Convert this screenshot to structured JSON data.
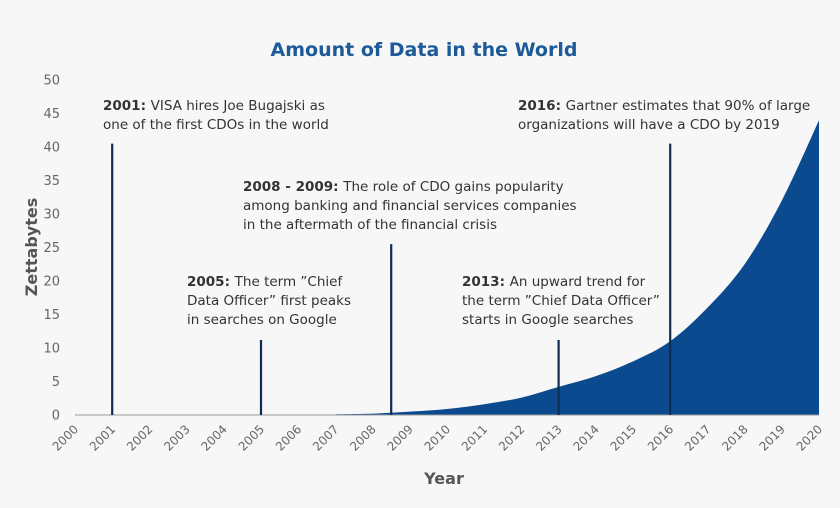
{
  "chart_data": {
    "type": "area",
    "title": "Amount of Data in the World",
    "xlabel": "Year",
    "ylabel": "Zettabytes",
    "xlim": [
      2000,
      2020
    ],
    "ylim": [
      0,
      50
    ],
    "yticks": [
      0,
      5,
      10,
      15,
      20,
      25,
      30,
      35,
      40,
      45,
      50
    ],
    "xticks": [
      "2000",
      "2001",
      "2002",
      "2003",
      "2004",
      "2005",
      "2006",
      "2007",
      "2008",
      "2009",
      "2010",
      "2011",
      "2012",
      "2013",
      "2014",
      "2015",
      "2016",
      "2017",
      "2018",
      "2019",
      "2020"
    ],
    "grid": false,
    "fill_color": "#0b4a8f",
    "series": [
      {
        "x": [
          2007,
          2008,
          2009,
          2010,
          2011,
          2012,
          2013,
          2014,
          2015,
          2016,
          2017,
          2018,
          2019,
          2020
        ],
        "values": [
          0.1,
          0.2,
          0.5,
          0.9,
          1.6,
          2.6,
          4.2,
          5.8,
          8.0,
          11.0,
          16.0,
          22.5,
          32.0,
          44.0
        ]
      }
    ],
    "annotations": [
      {
        "x": 2001,
        "line_top": 40.5,
        "bold": "2001:",
        "lines": [
          "VISA hires Joe Bugajski as",
          "one of the first CDOs in the world"
        ]
      },
      {
        "x": 2005,
        "line_top": 11.2,
        "bold": "2005:",
        "lines": [
          "The term ”Chief",
          "Data Officer” first peaks",
          "in searches on Google"
        ]
      },
      {
        "x": 2008.5,
        "line_top": 25.5,
        "bold": "2008 - 2009:",
        "lines": [
          "The role of CDO gains popularity",
          "among banking and financial services companies",
          "in the aftermath of the financial crisis"
        ]
      },
      {
        "x": 2013,
        "line_top": 11.2,
        "bold": "2013:",
        "lines": [
          "An upward trend for",
          "the term ”Chief Data Officer”",
          "starts in Google searches"
        ]
      },
      {
        "x": 2016,
        "line_top": 40.5,
        "bold": "2016:",
        "lines": [
          "Gartner estimates that 90% of large",
          "organizations will have a CDO by 2019"
        ]
      }
    ],
    "line_color": "#0f2d4f"
  }
}
